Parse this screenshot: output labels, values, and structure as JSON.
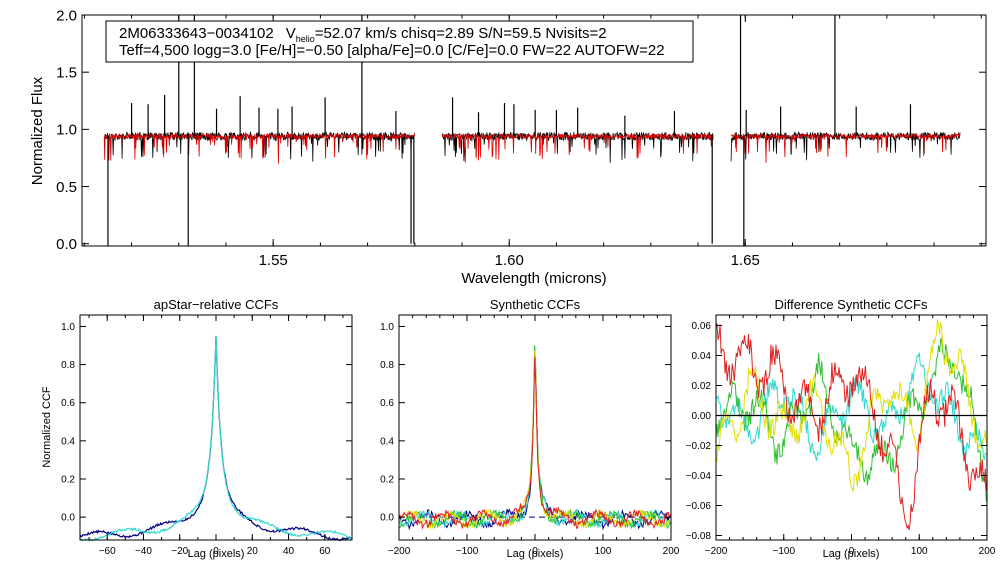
{
  "chart_data": [
    {
      "type": "line",
      "title": "",
      "xlabel": "Wavelength (microns)",
      "ylabel": "Normalized Flux",
      "xlim": [
        1.5095,
        1.701
      ],
      "ylim": [
        -0.02,
        2.0
      ],
      "xticks": [
        1.55,
        1.6,
        1.65
      ],
      "xtick_labels": [
        "1.55",
        "1.60",
        "1.65"
      ],
      "yticks": [
        0.0,
        0.5,
        1.0,
        1.5,
        2.0
      ],
      "ytick_labels": [
        "0.0",
        "0.5",
        "1.0",
        "1.5",
        "2.0"
      ],
      "annotation": {
        "star_id": "2M06333643−0034102",
        "v_prefix": "V",
        "v_sub": "helio",
        "v_rest": "=52.07 km/s  chisq=2.89  S/N=59.5  Nvisits=2",
        "line2": "Teff=4,500 logg=3.0 [Fe/H]=−0.50 [alpha/Fe]=0.0 [C/Fe]=0.0 FW=22 AUTOFW=22"
      },
      "segments": [
        [
          1.5142,
          1.58
        ],
        [
          1.5858,
          1.6432
        ],
        [
          1.647,
          1.6955
        ]
      ],
      "series": [
        {
          "name": "observed",
          "color": "#000000",
          "continuum": 0.94,
          "noise": 0.035
        },
        {
          "name": "model",
          "color": "#dd0000",
          "continuum": 0.94,
          "noise": 0.02
        }
      ],
      "spikes": [
        {
          "x": 1.515,
          "y": -0.02
        },
        {
          "x": 1.52,
          "y": 1.23
        },
        {
          "x": 1.5235,
          "y": 1.22
        },
        {
          "x": 1.527,
          "y": 1.3
        },
        {
          "x": 1.53,
          "y": 2.0
        },
        {
          "x": 1.532,
          "y": -0.02
        },
        {
          "x": 1.5333,
          "y": 2.0
        },
        {
          "x": 1.538,
          "y": 1.18
        },
        {
          "x": 1.543,
          "y": 1.29
        },
        {
          "x": 1.547,
          "y": 1.19
        },
        {
          "x": 1.551,
          "y": 1.18
        },
        {
          "x": 1.554,
          "y": 1.2
        },
        {
          "x": 1.561,
          "y": 1.28
        },
        {
          "x": 1.5688,
          "y": 2.0
        },
        {
          "x": 1.576,
          "y": 1.16
        },
        {
          "x": 1.5792,
          "y": 0.0
        },
        {
          "x": 1.5798,
          "y": 0.0
        },
        {
          "x": 1.588,
          "y": 1.28
        },
        {
          "x": 1.5935,
          "y": 1.15
        },
        {
          "x": 1.599,
          "y": 1.23
        },
        {
          "x": 1.601,
          "y": 1.22
        },
        {
          "x": 1.6055,
          "y": 1.17
        },
        {
          "x": 1.61,
          "y": 1.17
        },
        {
          "x": 1.6145,
          "y": 1.19
        },
        {
          "x": 1.6245,
          "y": 1.12
        },
        {
          "x": 1.635,
          "y": 1.16
        },
        {
          "x": 1.643,
          "y": 0.0
        },
        {
          "x": 1.649,
          "y": 2.0
        },
        {
          "x": 1.6497,
          "y": -0.02
        },
        {
          "x": 1.6502,
          "y": 1.17
        },
        {
          "x": 1.6575,
          "y": 1.2
        },
        {
          "x": 1.669,
          "y": 2.0
        },
        {
          "x": 1.6735,
          "y": 1.2
        },
        {
          "x": 1.685,
          "y": 1.22
        }
      ]
    },
    {
      "type": "line",
      "title": "apStar−relative CCFs",
      "xlabel": "Lag (pixels)",
      "ylabel": "Normalized CCF",
      "xlim": [
        -75,
        75
      ],
      "ylim": [
        -0.12,
        1.06
      ],
      "xticks": [
        -60,
        -40,
        -20,
        0,
        20,
        40,
        60
      ],
      "xtick_labels": [
        "−60",
        "−40",
        "−20",
        "0",
        "20",
        "40",
        "60"
      ],
      "yticks": [
        0.0,
        0.2,
        0.4,
        0.6,
        0.8,
        1.0
      ],
      "ytick_labels": [
        "0.0",
        "0.2",
        "0.4",
        "0.6",
        "0.8",
        "1.0"
      ],
      "peak": 0,
      "series": [
        {
          "name": "visit 1",
          "color": "#000080",
          "wing": 0.02,
          "offset": 0.0
        },
        {
          "name": "visit 2",
          "color": "#30d8d0",
          "wing": -0.02,
          "offset": 0.5
        }
      ]
    },
    {
      "type": "line",
      "title": "Synthetic CCFs",
      "xlabel": "Lag (pixels)",
      "ylabel": "",
      "xlim": [
        -200,
        200
      ],
      "ylim": [
        -0.12,
        1.06
      ],
      "xticks": [
        -200,
        -100,
        0,
        100,
        200
      ],
      "xtick_labels": [
        "−200",
        "−100",
        "0",
        "100",
        "200"
      ],
      "yticks": [
        0.0,
        0.2,
        0.4,
        0.6,
        0.8,
        1.0
      ],
      "ytick_labels": [
        "0.0",
        "0.2",
        "0.4",
        "0.6",
        "0.8",
        "1.0"
      ],
      "baseline": 0.0,
      "series": [
        {
          "name": "ccf navy",
          "color": "#000080"
        },
        {
          "name": "ccf cyan",
          "color": "#30d8d0"
        },
        {
          "name": "ccf green",
          "color": "#30c030"
        },
        {
          "name": "ccf yellow",
          "color": "#e0e000"
        },
        {
          "name": "ccf red",
          "color": "#e02020"
        }
      ]
    },
    {
      "type": "line",
      "title": "Difference Synthetic CCFs",
      "xlabel": "Lag (pixels)",
      "ylabel": "",
      "xlim": [
        -200,
        200
      ],
      "ylim": [
        -0.083,
        0.067
      ],
      "xticks": [
        -200,
        -100,
        0,
        100,
        200
      ],
      "xtick_labels": [
        "−200",
        "−100",
        "0",
        "100",
        "200"
      ],
      "yticks": [
        -0.08,
        -0.06,
        -0.04,
        -0.02,
        0.0,
        0.02,
        0.04,
        0.06
      ],
      "ytick_labels": [
        "−0.08",
        "−0.06",
        "−0.04",
        "−0.02",
        "0.00",
        "0.02",
        "0.04",
        "0.06"
      ],
      "baseline": 0.0,
      "series": [
        {
          "name": "diff cyan",
          "color": "#30d8d0",
          "amp": 0.022,
          "knots": [
            [
              -200,
              0.01
            ],
            [
              -150,
              -0.01
            ],
            [
              -100,
              0.02
            ],
            [
              -50,
              -0.02
            ],
            [
              0,
              0.015
            ],
            [
              50,
              -0.01
            ],
            [
              100,
              0.03
            ],
            [
              150,
              0.0
            ],
            [
              200,
              -0.03
            ]
          ]
        },
        {
          "name": "diff green",
          "color": "#30c030",
          "amp": 0.025,
          "knots": [
            [
              -200,
              0.0
            ],
            [
              -150,
              0.01
            ],
            [
              -100,
              -0.02
            ],
            [
              -50,
              0.025
            ],
            [
              0,
              -0.025
            ],
            [
              50,
              -0.03
            ],
            [
              100,
              0.01
            ],
            [
              150,
              0.045
            ],
            [
              200,
              -0.04
            ]
          ]
        },
        {
          "name": "diff yellow",
          "color": "#e0e000",
          "amp": 0.025,
          "knots": [
            [
              -200,
              -0.03
            ],
            [
              -150,
              0.02
            ],
            [
              -100,
              -0.01
            ],
            [
              -50,
              0.01
            ],
            [
              0,
              -0.04
            ],
            [
              50,
              0.02
            ],
            [
              100,
              -0.01
            ],
            [
              130,
              0.06
            ],
            [
              200,
              -0.02
            ]
          ]
        },
        {
          "name": "diff red",
          "color": "#e02020",
          "amp": 0.03,
          "knots": [
            [
              -200,
              0.045
            ],
            [
              -170,
              0.04
            ],
            [
              -120,
              0.03
            ],
            [
              -60,
              0.0
            ],
            [
              0,
              0.03
            ],
            [
              40,
              0.0
            ],
            [
              80,
              -0.07
            ],
            [
              120,
              0.02
            ],
            [
              160,
              -0.01
            ],
            [
              200,
              -0.06
            ]
          ]
        }
      ]
    }
  ]
}
